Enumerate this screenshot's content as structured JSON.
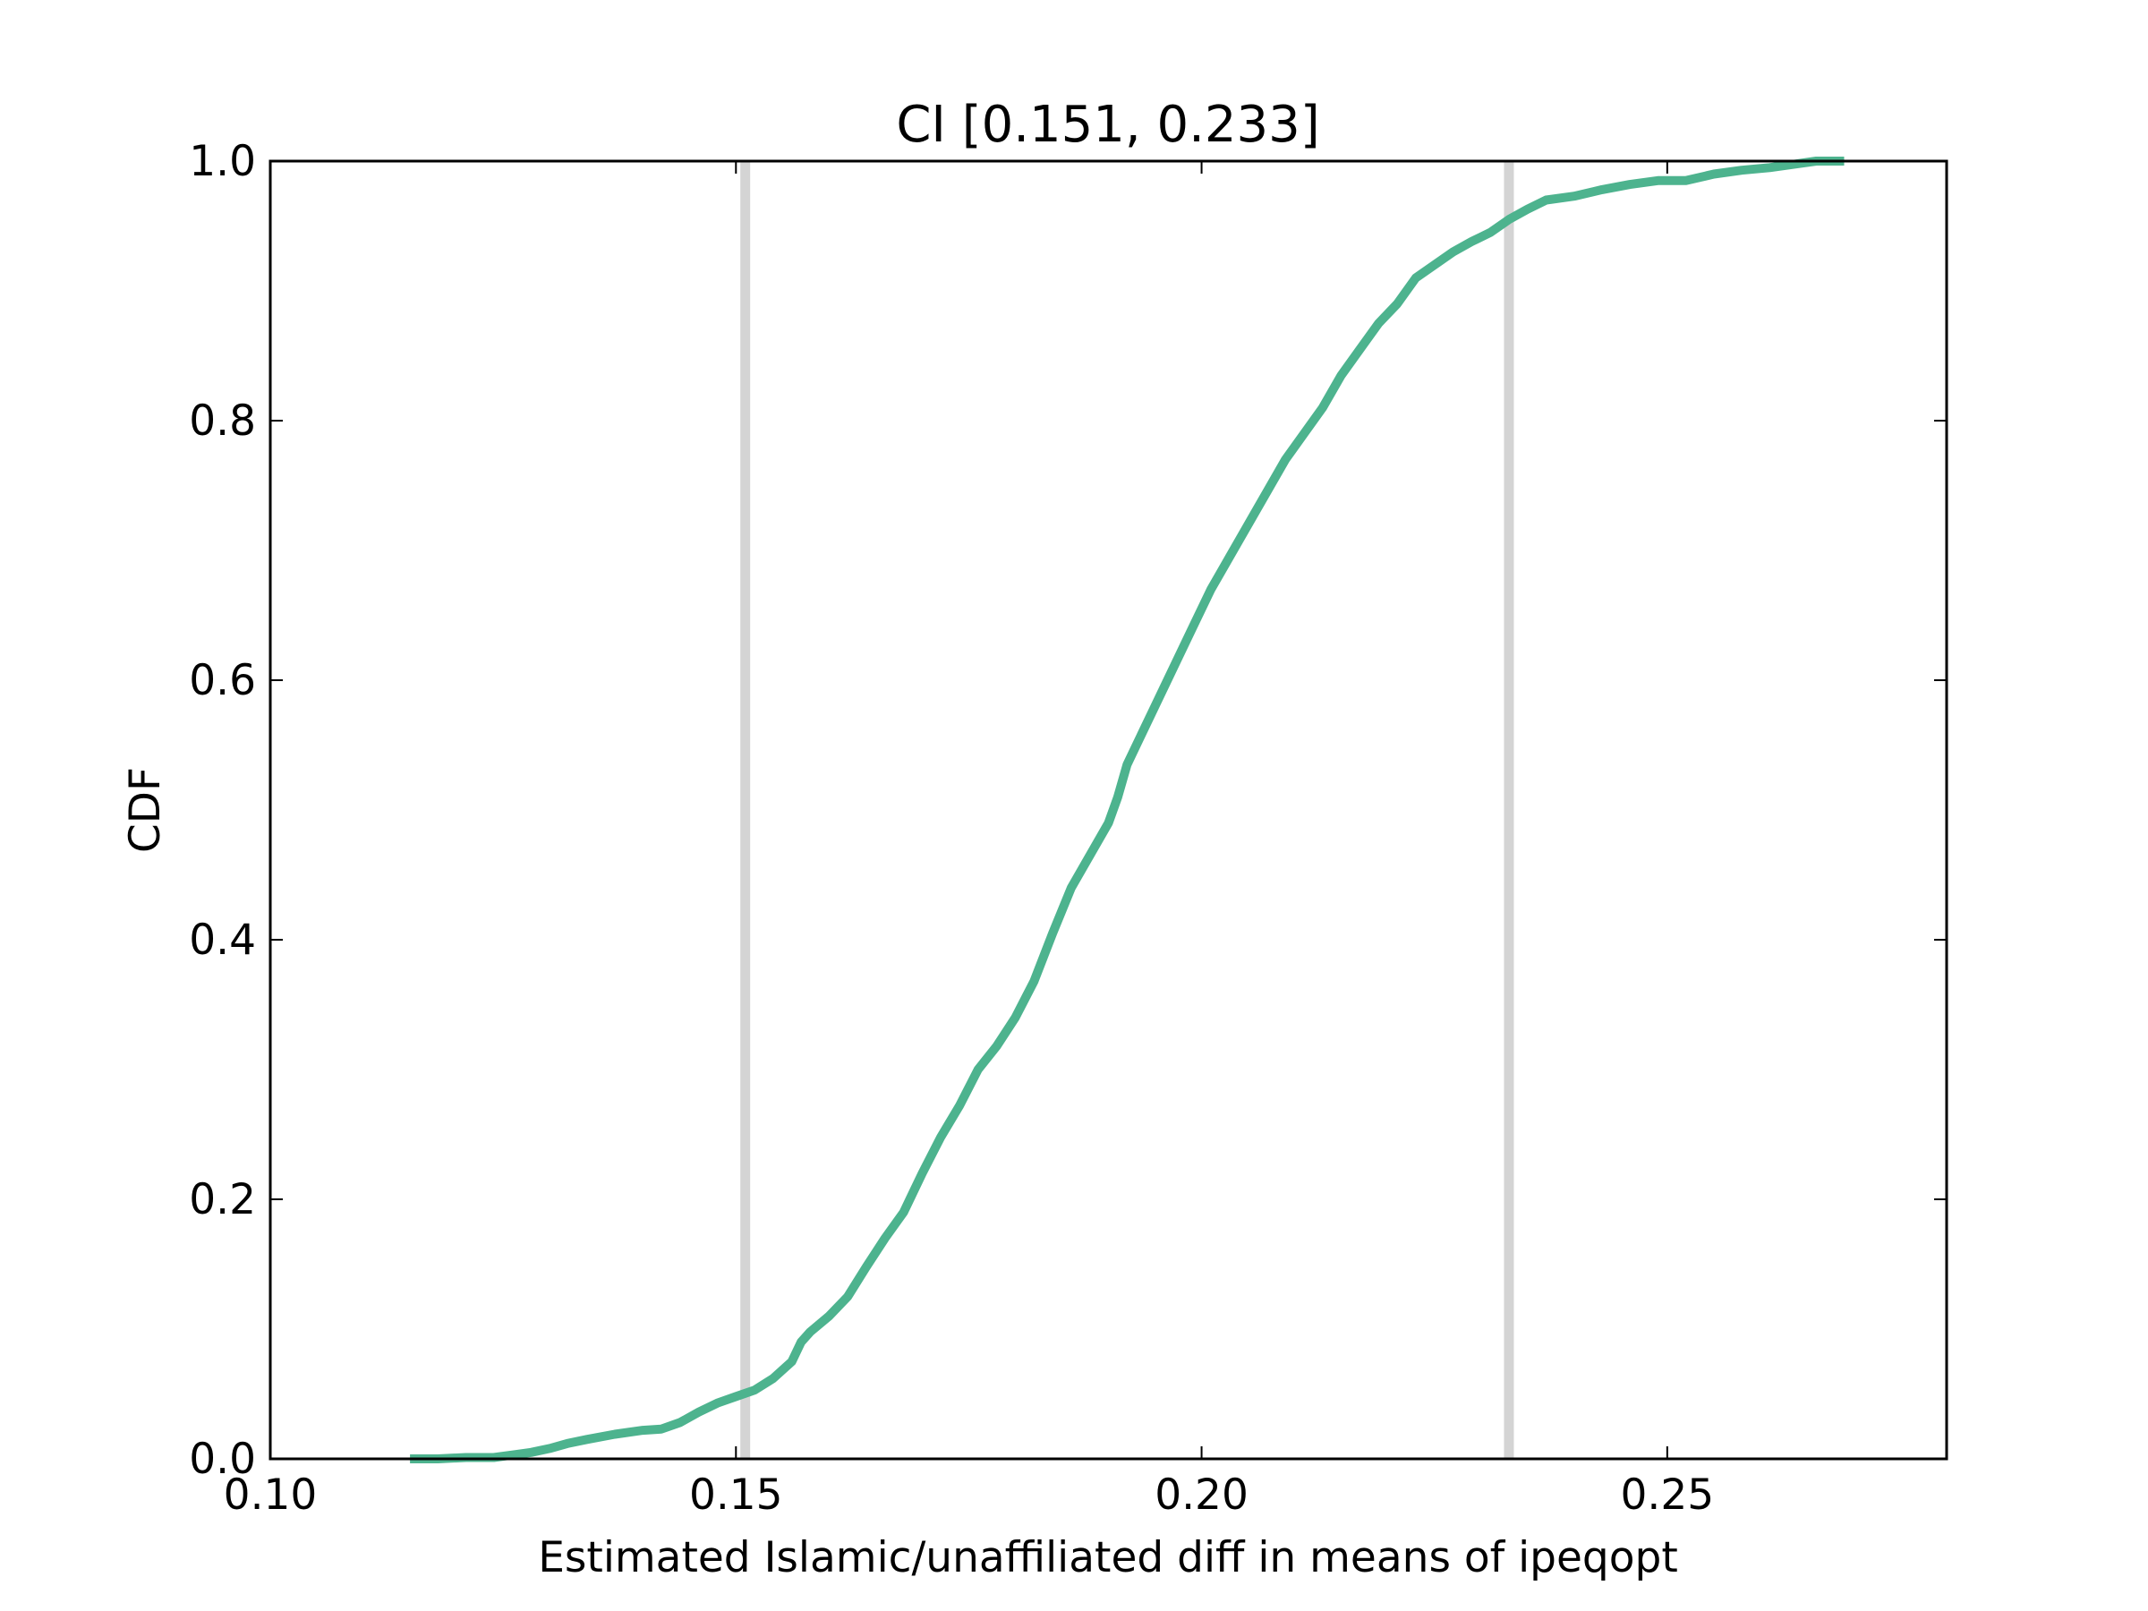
{
  "chart_data": {
    "type": "line",
    "title": "CI [0.151, 0.233]",
    "xlabel": "Estimated Islamic/unaffiliated diff in means of ipeqopt",
    "ylabel": "CDF",
    "xlim": [
      0.1,
      0.28
    ],
    "ylim": [
      0.0,
      1.0
    ],
    "xticks": [
      "0.10",
      "0.15",
      "0.20",
      "0.25"
    ],
    "xtick_values": [
      0.1,
      0.15,
      0.2,
      0.25
    ],
    "yticks": [
      "0.0",
      "0.2",
      "0.4",
      "0.6",
      "0.8",
      "1.0"
    ],
    "ytick_values": [
      0.0,
      0.2,
      0.4,
      0.6,
      0.8,
      1.0
    ],
    "grid": false,
    "reference_lines": {
      "x": [
        0.151,
        0.233
      ],
      "color": "#d4d4d4"
    },
    "series": [
      {
        "color": "#4db38e",
        "x": [
          0.115,
          0.118,
          0.121,
          0.124,
          0.126,
          0.128,
          0.13,
          0.132,
          0.134,
          0.137,
          0.14,
          0.142,
          0.144,
          0.146,
          0.148,
          0.15,
          0.152,
          0.154,
          0.156,
          0.157,
          0.158,
          0.16,
          0.162,
          0.164,
          0.166,
          0.168,
          0.17,
          0.172,
          0.174,
          0.176,
          0.178,
          0.18,
          0.182,
          0.184,
          0.186,
          0.188,
          0.19,
          0.191,
          0.192,
          0.193,
          0.195,
          0.197,
          0.199,
          0.201,
          0.203,
          0.205,
          0.207,
          0.209,
          0.211,
          0.213,
          0.215,
          0.217,
          0.219,
          0.221,
          0.223,
          0.225,
          0.227,
          0.229,
          0.231,
          0.233,
          0.235,
          0.237,
          0.24,
          0.243,
          0.246,
          0.249,
          0.252,
          0.255,
          0.258,
          0.261,
          0.264,
          0.266,
          0.269
        ],
        "y": [
          0.0,
          0.0,
          0.001,
          0.001,
          0.003,
          0.005,
          0.008,
          0.012,
          0.015,
          0.019,
          0.022,
          0.023,
          0.028,
          0.036,
          0.043,
          0.048,
          0.053,
          0.062,
          0.075,
          0.09,
          0.098,
          0.11,
          0.125,
          0.148,
          0.17,
          0.19,
          0.22,
          0.248,
          0.272,
          0.3,
          0.318,
          0.34,
          0.368,
          0.405,
          0.44,
          0.465,
          0.49,
          0.51,
          0.535,
          0.55,
          0.58,
          0.61,
          0.64,
          0.67,
          0.695,
          0.72,
          0.745,
          0.77,
          0.79,
          0.81,
          0.835,
          0.855,
          0.875,
          0.89,
          0.91,
          0.92,
          0.93,
          0.938,
          0.945,
          0.955,
          0.963,
          0.97,
          0.973,
          0.978,
          0.982,
          0.985,
          0.985,
          0.99,
          0.993,
          0.995,
          0.998,
          1.0,
          1.0
        ]
      }
    ]
  }
}
